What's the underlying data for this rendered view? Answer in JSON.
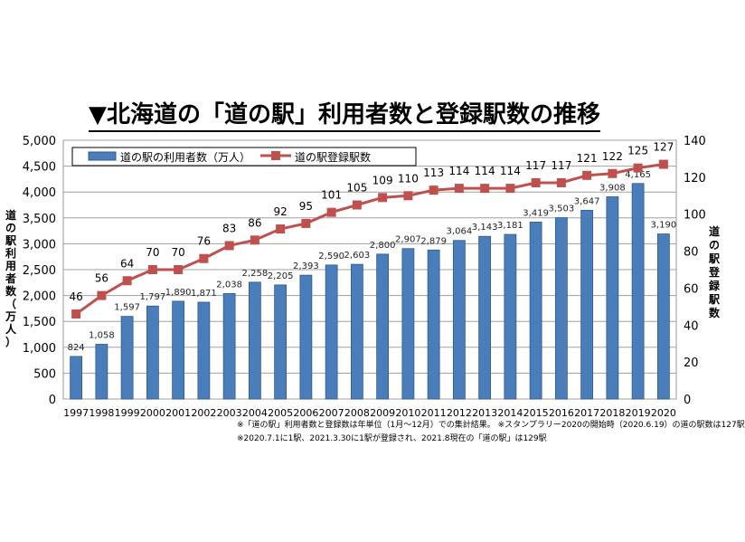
{
  "title": "▼北海道の「道の駅」利用者数と登録駅数の推移",
  "footnotes": [
    "※「道の駅」利用者数と登録数は年単位（1月～12月）での集計結果。 ※スタンプラリー2020の開始時（2020.6.19）の道の駅数は127駅",
    "※2020.7.1に1駅、2021.3.30に1駅が登録され、2021.8現在の「道の駅」は129駅"
  ],
  "chart_data": {
    "type": "bar+line",
    "categories": [
      "1997",
      "1998",
      "1999",
      "2000",
      "2001",
      "2002",
      "2003",
      "2004",
      "2005",
      "2006",
      "2007",
      "2008",
      "2009",
      "2010",
      "2011",
      "2012",
      "2013",
      "2014",
      "2015",
      "2016",
      "2017",
      "2018",
      "2019",
      "2020"
    ],
    "series": [
      {
        "name": "道の駅の利用者数（万人）",
        "type": "bar",
        "axis": "left",
        "color": "#4a7ebb",
        "values": [
          824,
          1058,
          1597,
          1797,
          1890,
          1871,
          2038,
          2258,
          2205,
          2393,
          2590,
          2603,
          2800,
          2907,
          2879,
          3064,
          3143,
          3181,
          3419,
          3503,
          3647,
          3908,
          4165,
          3190
        ],
        "labels": [
          "824",
          "1,058",
          "1,597",
          "1,797",
          "1,890",
          "1,871",
          "2,038",
          "2,258",
          "2,205",
          "2,393",
          "2,590",
          "2,603",
          "2,800",
          "2,907",
          "2,879",
          "3,064",
          "3,143",
          "3,181",
          "3,419",
          "3,503",
          "3,647",
          "3,908",
          "4,165",
          "3,190"
        ]
      },
      {
        "name": "道の駅登録駅数",
        "type": "line",
        "axis": "right",
        "color": "#c0504d",
        "values": [
          46,
          56,
          64,
          70,
          70,
          76,
          83,
          86,
          92,
          95,
          101,
          105,
          109,
          110,
          113,
          114,
          114,
          114,
          117,
          117,
          121,
          122,
          125,
          127
        ]
      }
    ],
    "ylabel": "道の駅利用者数（万人）",
    "y2label": "道の駅登録駅数",
    "ylim": [
      0,
      5000
    ],
    "yticks": [
      0,
      500,
      1000,
      1500,
      2000,
      2500,
      3000,
      3500,
      4000,
      4500,
      5000
    ],
    "ytick_labels": [
      "0",
      "500",
      "1,000",
      "1,500",
      "2,000",
      "2,500",
      "3,000",
      "3,500",
      "4,000",
      "4,500",
      "5,000"
    ],
    "y2lim": [
      0,
      140
    ],
    "y2ticks": [
      0,
      20,
      40,
      60,
      80,
      100,
      120,
      140
    ],
    "grid": true,
    "legend": "top"
  }
}
